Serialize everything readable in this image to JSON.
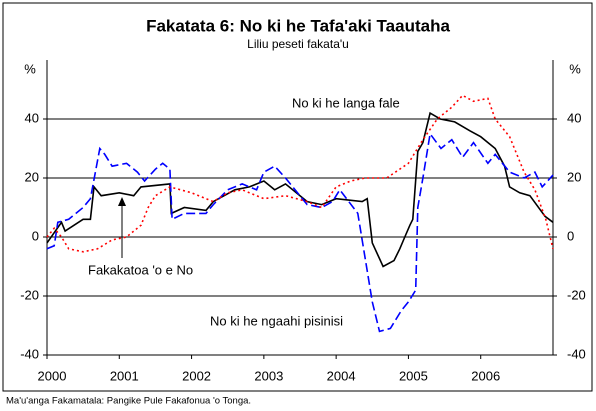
{
  "chart_data": {
    "type": "line",
    "title": "Fakatata 6: No ki he Tafa'aki Taautaha",
    "subtitle": "Liliu peseti fakata'u",
    "ylabel": "%",
    "y2label": "%",
    "source": "Ma'u'anga Fakamatala: Pangike Pule Fakafonua 'o Tonga.",
    "xlim": [
      2000,
      2007
    ],
    "xticks": [
      2000,
      2001,
      2002,
      2003,
      2004,
      2005,
      2006
    ],
    "ylim": [
      -40,
      60
    ],
    "yticks": [
      -40,
      -20,
      0,
      20,
      40
    ],
    "y2lim": [
      -40,
      60
    ],
    "y2ticks": [
      -40,
      -20,
      0,
      20,
      40
    ],
    "grid": true,
    "annotations": [
      "No ki he langa fale",
      "Fakakatoa 'o e No",
      "No ki he ngaahi pisinisi"
    ],
    "series": [
      {
        "name": "Fakakatoa 'o e No",
        "color": "#000000",
        "dash": "solid",
        "x": [
          2000,
          2000.2,
          2000.25,
          2000.5,
          2000.6,
          2000.65,
          2000.75,
          2001.0,
          2001.2,
          2001.3,
          2001.7,
          2001.72,
          2001.9,
          2002.2,
          2002.3,
          2002.6,
          2002.8,
          2003.0,
          2003.15,
          2003.3,
          2003.6,
          2003.8,
          2004.0,
          2004.36,
          2004.43,
          2004.5,
          2004.65,
          2004.8,
          2004.88,
          2004.95,
          2005.02,
          2005.06,
          2005.13,
          2005.2,
          2005.3,
          2005.44,
          2005.64,
          2005.85,
          2006.0,
          2006.2,
          2006.33,
          2006.4,
          2006.54,
          2006.68,
          2006.89,
          2007.0
        ],
        "values": [
          -2,
          5,
          2,
          6,
          6,
          17,
          14,
          15,
          14,
          17,
          18,
          8,
          10,
          9,
          12,
          16,
          17,
          19,
          16,
          18,
          12,
          11,
          13,
          12,
          13,
          -2,
          -10,
          -8,
          -4,
          0,
          4,
          6,
          29,
          32,
          42,
          40,
          39,
          36,
          34,
          30,
          24,
          17,
          15,
          14,
          7,
          5
        ]
      },
      {
        "name": "No ki he ngaahi pisinisi",
        "color": "#0000ff",
        "dash": "dashed",
        "x": [
          2000,
          2000.1,
          2000.15,
          2000.3,
          2000.5,
          2000.6,
          2000.73,
          2000.8,
          2000.9,
          2001.1,
          2001.25,
          2001.35,
          2001.5,
          2001.6,
          2001.7,
          2001.73,
          2001.9,
          2002.2,
          2002.3,
          2002.5,
          2002.7,
          2002.9,
          2003.0,
          2003.15,
          2003.3,
          2003.6,
          2003.8,
          2003.95,
          2004.05,
          2004.3,
          2004.5,
          2004.6,
          2004.75,
          2004.9,
          2005.0,
          2005.1,
          2005.13,
          2005.2,
          2005.3,
          2005.45,
          2005.6,
          2005.75,
          2005.9,
          2006.1,
          2006.2,
          2006.4,
          2006.6,
          2006.75,
          2006.85,
          2007.0
        ],
        "values": [
          -4,
          -3,
          5,
          6,
          10,
          13,
          30,
          28,
          24,
          25,
          22,
          19,
          23,
          25,
          23,
          6,
          8,
          8,
          11,
          16,
          18,
          16,
          22,
          24,
          20,
          11,
          10,
          12,
          16,
          8,
          -22,
          -32,
          -31,
          -25,
          -22,
          -18,
          10,
          20,
          35,
          30,
          33,
          27,
          32,
          25,
          28,
          22,
          20,
          22,
          17,
          21
        ]
      },
      {
        "name": "No ki he langa fale",
        "color": "#ff0000",
        "dash": "dotted",
        "x": [
          2000,
          2000.1,
          2000.2,
          2000.3,
          2000.5,
          2000.7,
          2000.9,
          2001.1,
          2001.3,
          2001.4,
          2001.5,
          2001.7,
          2002.0,
          2002.3,
          2002.5,
          2002.7,
          2003.0,
          2003.3,
          2003.6,
          2003.8,
          2004.0,
          2004.2,
          2004.4,
          2004.7,
          2005.0,
          2005.2,
          2005.4,
          2005.6,
          2005.75,
          2005.9,
          2006.1,
          2006.2,
          2006.4,
          2006.6,
          2006.75,
          2006.9,
          2007.0
        ],
        "values": [
          0,
          3,
          0,
          -4,
          -5,
          -4,
          -1,
          0,
          4,
          10,
          14,
          17,
          15,
          12,
          15,
          16,
          13,
          14,
          12,
          10,
          17,
          19,
          20,
          20,
          25,
          33,
          40,
          44,
          48,
          46,
          47,
          40,
          34,
          22,
          16,
          6,
          -4
        ]
      }
    ]
  }
}
